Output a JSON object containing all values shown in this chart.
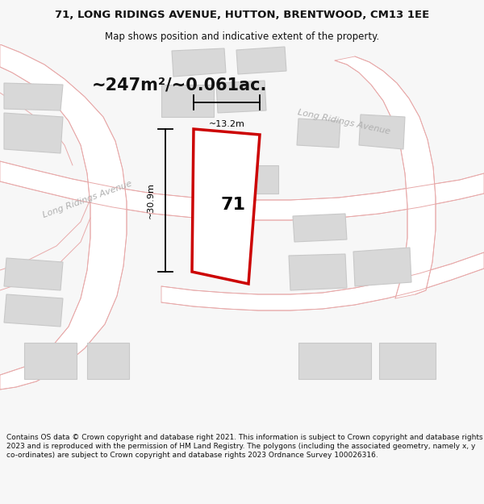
{
  "title_line1": "71, LONG RIDINGS AVENUE, HUTTON, BRENTWOOD, CM13 1EE",
  "title_line2": "Map shows position and indicative extent of the property.",
  "area_text": "~247m²/~0.061ac.",
  "property_number": "71",
  "dim_vertical": "~30.9m",
  "dim_horizontal": "~13.2m",
  "street_label_left": "Long Ridings Avenue",
  "street_label_right": "Long Ridings Avenue",
  "copyright_text": "Contains OS data © Crown copyright and database right 2021. This information is subject to Crown copyright and database rights 2023 and is reproduced with the permission of HM Land Registry. The polygons (including the associated geometry, namely x, y co-ordinates) are subject to Crown copyright and database rights 2023 Ordnance Survey 100026316.",
  "bg_color": "#f7f7f7",
  "map_bg": "#f2f0f0",
  "road_fill": "#ffffff",
  "road_stroke": "#e8aaaa",
  "building_fill": "#d8d8d8",
  "building_stroke": "#c8c8c8",
  "plot_fill": "#ffffff",
  "plot_stroke": "#cc0000",
  "dim_color": "#111111",
  "title_color": "#111111",
  "area_color": "#111111",
  "street_color": "#b0b0b0",
  "copyright_color": "#111111",
  "title_fontsize": 9.5,
  "subtitle_fontsize": 8.5,
  "area_fontsize": 15,
  "prop_num_fontsize": 16,
  "street_fontsize": 8,
  "copyright_fontsize": 6.5
}
